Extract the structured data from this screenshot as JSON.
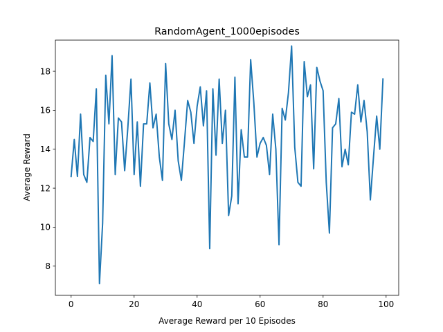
{
  "chart_data": {
    "type": "line",
    "title": "RandomAgent_1000episodes",
    "xlabel": "Average Reward per 10 Episodes",
    "ylabel": "Average Reward",
    "xlim": [
      -5,
      104
    ],
    "ylim": [
      6.5,
      19.6
    ],
    "xticks": [
      0,
      20,
      40,
      60,
      80,
      100
    ],
    "yticks": [
      8,
      10,
      12,
      14,
      16,
      18
    ],
    "grid": false,
    "line_color": "#1f77b4",
    "series": [
      {
        "x": [
          0,
          1,
          2,
          3,
          4,
          5,
          6,
          7,
          8,
          9,
          10,
          11,
          12,
          13,
          14,
          15,
          16,
          17,
          18,
          19,
          20,
          21,
          22,
          23,
          24,
          25,
          26,
          27,
          28,
          29,
          30,
          31,
          32,
          33,
          34,
          35,
          36,
          37,
          38,
          39,
          40,
          41,
          42,
          43,
          44,
          45,
          46,
          47,
          48,
          49,
          50,
          51,
          52,
          53,
          54,
          55,
          56,
          57,
          58,
          59,
          60,
          61,
          62,
          63,
          64,
          65,
          66,
          67,
          68,
          69,
          70,
          71,
          72,
          73,
          74,
          75,
          76,
          77,
          78,
          79,
          80,
          81,
          82,
          83,
          84,
          85,
          86,
          87,
          88,
          89,
          90,
          91,
          92,
          93,
          94,
          95,
          96,
          97,
          98,
          99
        ],
        "values": [
          12.6,
          14.5,
          12.6,
          15.8,
          12.7,
          12.3,
          14.6,
          14.4,
          17.1,
          7.1,
          10.2,
          17.8,
          15.3,
          18.8,
          12.7,
          15.6,
          15.4,
          12.9,
          15.1,
          17.6,
          12.7,
          15.4,
          12.1,
          15.3,
          15.3,
          17.4,
          15.1,
          15.8,
          13.6,
          12.4,
          18.4,
          15.3,
          14.5,
          16.0,
          13.4,
          12.4,
          14.4,
          16.5,
          15.9,
          14.3,
          16.2,
          17.2,
          15.2,
          17.0,
          8.9,
          17.1,
          13.7,
          17.6,
          14.3,
          16.0,
          10.6,
          11.6,
          17.7,
          11.2,
          15.0,
          13.6,
          13.6,
          18.6,
          16.4,
          13.6,
          14.3,
          14.6,
          14.2,
          12.7,
          15.8,
          14.0,
          9.1,
          16.1,
          15.5,
          16.9,
          19.3,
          14.1,
          12.3,
          12.1,
          18.5,
          16.7,
          17.3,
          13.0,
          18.2,
          17.5,
          17.0,
          12.3,
          9.7,
          15.1,
          15.3,
          16.6,
          13.1,
          14.0,
          13.2,
          15.9,
          15.8,
          17.3,
          15.4,
          16.5,
          14.9,
          11.4,
          13.6,
          15.7,
          14.0,
          17.6
        ]
      }
    ]
  }
}
